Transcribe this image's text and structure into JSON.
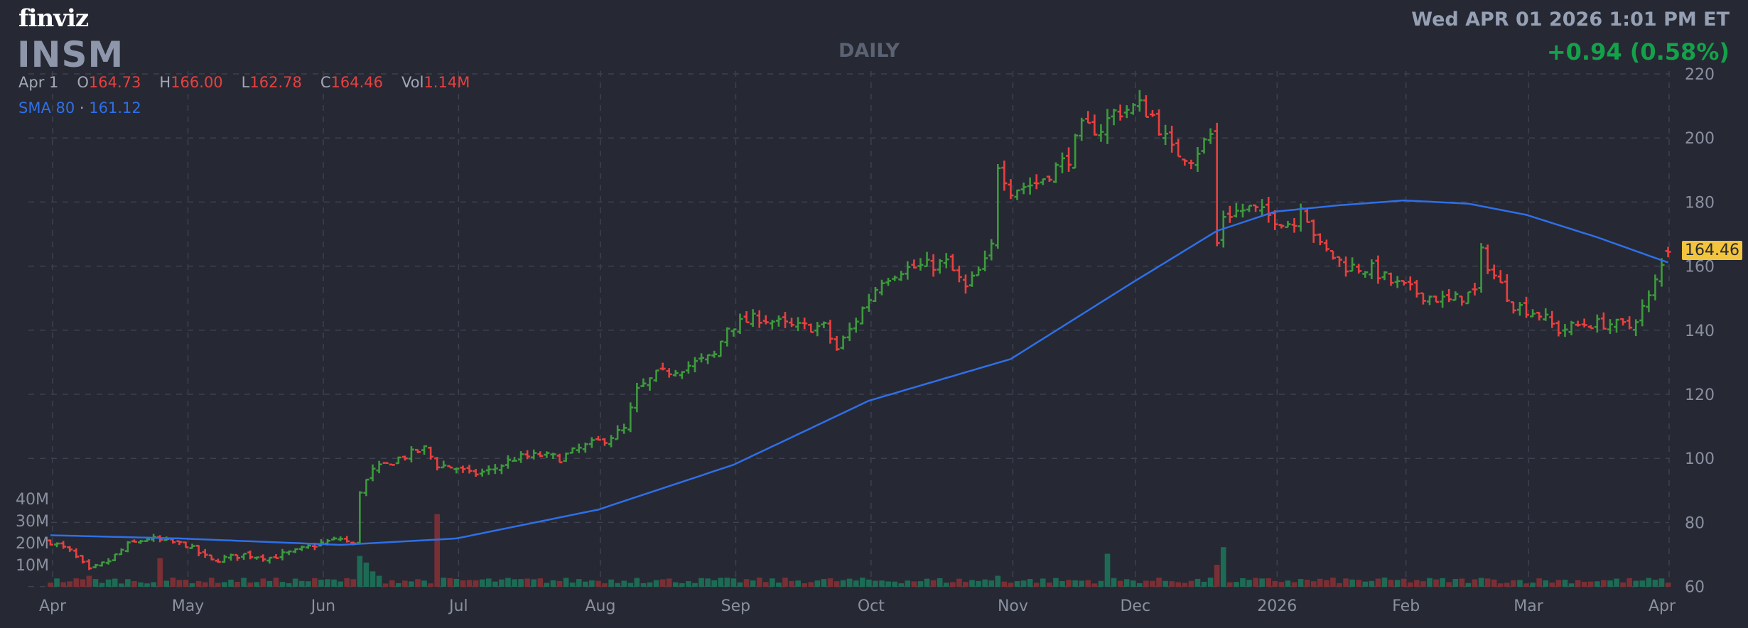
{
  "header": {
    "logo": "finviz",
    "ticker": "INSM",
    "timeframe": "DAILY",
    "datetime": "Wed APR 01 2026 1:01 PM ET",
    "change": "+0.94 (0.58%)",
    "change_color": "#13a24a"
  },
  "ohlc": {
    "date": "Apr 1",
    "open_label": "O",
    "open": "164.73",
    "high_label": "H",
    "high": "166.00",
    "low_label": "L",
    "low": "162.78",
    "close_label": "C",
    "close": "164.46",
    "vol_label": "Vol",
    "volume": "1.14M"
  },
  "indicator": {
    "name": "SMA 80",
    "separator": "·",
    "value": "161.12",
    "color": "#2f6fe8"
  },
  "last_price_tag": "164.46",
  "chart_data": {
    "type": "ohlc",
    "title": "INSM DAILY",
    "y_ticks": [
      "220",
      "200",
      "180",
      "160",
      "140",
      "120",
      "100",
      "80",
      "60"
    ],
    "ylim": [
      60,
      220
    ],
    "volume_ticks": [
      "40M",
      "30M",
      "20M",
      "10M"
    ],
    "x_ticks": [
      {
        "label": "Apr",
        "bar": 0
      },
      {
        "label": "May",
        "bar": 21
      },
      {
        "label": "Jun",
        "bar": 42
      },
      {
        "label": "Jul",
        "bar": 63
      },
      {
        "label": "Aug",
        "bar": 85
      },
      {
        "label": "Sep",
        "bar": 106
      },
      {
        "label": "Oct",
        "bar": 127
      },
      {
        "label": "Nov",
        "bar": 149
      },
      {
        "label": "Dec",
        "bar": 168
      },
      {
        "label": "2026",
        "bar": 190
      },
      {
        "label": "Feb",
        "bar": 210
      },
      {
        "label": "Mar",
        "bar": 229
      },
      {
        "label": "Apr",
        "bar": 251
      }
    ],
    "bar_count": 252,
    "close_anchors": [
      [
        0,
        74
      ],
      [
        3,
        71
      ],
      [
        6,
        65
      ],
      [
        9,
        68
      ],
      [
        12,
        73
      ],
      [
        15,
        75
      ],
      [
        18,
        74
      ],
      [
        21,
        73
      ],
      [
        25,
        68
      ],
      [
        30,
        70
      ],
      [
        34,
        69
      ],
      [
        38,
        71
      ],
      [
        41,
        73
      ],
      [
        45,
        75
      ],
      [
        47,
        73
      ],
      [
        48,
        90
      ],
      [
        50,
        96
      ],
      [
        54,
        100
      ],
      [
        58,
        103
      ],
      [
        60,
        98
      ],
      [
        63,
        97
      ],
      [
        65,
        95
      ],
      [
        68,
        96
      ],
      [
        72,
        100
      ],
      [
        76,
        101
      ],
      [
        79,
        100
      ],
      [
        82,
        103
      ],
      [
        86,
        106
      ],
      [
        89,
        109
      ],
      [
        91,
        121
      ],
      [
        94,
        126
      ],
      [
        99,
        129
      ],
      [
        103,
        132
      ],
      [
        105,
        141
      ],
      [
        110,
        144
      ],
      [
        115,
        141
      ],
      [
        120,
        141
      ],
      [
        122,
        134
      ],
      [
        124,
        140
      ],
      [
        127,
        150
      ],
      [
        129,
        156
      ],
      [
        132,
        159
      ],
      [
        139,
        161
      ],
      [
        142,
        153
      ],
      [
        145,
        161
      ],
      [
        146,
        166
      ],
      [
        147,
        192
      ],
      [
        149,
        184
      ],
      [
        153,
        186
      ],
      [
        158,
        194
      ],
      [
        160,
        203
      ],
      [
        163,
        203
      ],
      [
        165,
        208
      ],
      [
        169,
        210
      ],
      [
        171,
        207
      ],
      [
        174,
        196
      ],
      [
        177,
        194
      ],
      [
        180,
        201
      ],
      [
        181,
        167
      ],
      [
        182,
        176
      ],
      [
        186,
        178
      ],
      [
        190,
        175
      ],
      [
        193,
        173
      ],
      [
        194,
        180
      ],
      [
        197,
        166
      ],
      [
        201,
        160
      ],
      [
        205,
        159
      ],
      [
        208,
        155
      ],
      [
        213,
        151
      ],
      [
        217,
        149
      ],
      [
        221,
        152
      ],
      [
        222,
        164
      ],
      [
        224,
        157
      ],
      [
        227,
        148
      ],
      [
        231,
        145
      ],
      [
        234,
        140
      ],
      [
        238,
        142
      ],
      [
        242,
        142
      ],
      [
        245,
        141
      ],
      [
        248,
        150
      ],
      [
        250,
        160
      ]
    ],
    "last_bar": {
      "open": 164.73,
      "high": 166.0,
      "low": 162.78,
      "close": 164.46
    },
    "sma80_anchors": [
      [
        0,
        76
      ],
      [
        20,
        75
      ],
      [
        45,
        73
      ],
      [
        63,
        75
      ],
      [
        85,
        84
      ],
      [
        106,
        98
      ],
      [
        127,
        118
      ],
      [
        149,
        131
      ],
      [
        168,
        155
      ],
      [
        181,
        171
      ],
      [
        190,
        177
      ],
      [
        200,
        179
      ],
      [
        210,
        180.5
      ],
      [
        220,
        179.5
      ],
      [
        229,
        176
      ],
      [
        240,
        169
      ],
      [
        251,
        161.12
      ]
    ],
    "volume_base_m": 3,
    "volume_spikes_m": [
      [
        6,
        5
      ],
      [
        17,
        13
      ],
      [
        48,
        14
      ],
      [
        49,
        11
      ],
      [
        50,
        7
      ],
      [
        51,
        5
      ],
      [
        60,
        33
      ],
      [
        91,
        4
      ],
      [
        147,
        5
      ],
      [
        164,
        15
      ],
      [
        181,
        10
      ],
      [
        182,
        18
      ],
      [
        222,
        4
      ]
    ],
    "colors": {
      "up": "#3d9a3d",
      "down": "#e8403f",
      "vol_up": "#1d6b55",
      "vol_down": "#7a2f35",
      "sma": "#2f6fe8",
      "grid": "#3d4150"
    }
  }
}
